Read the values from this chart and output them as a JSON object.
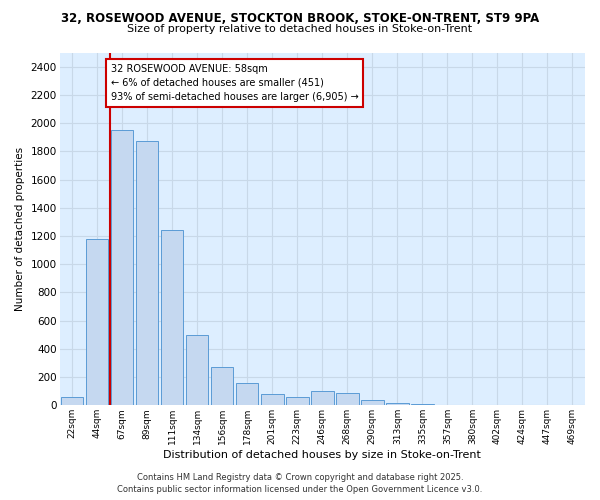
{
  "title_line1": "32, ROSEWOOD AVENUE, STOCKTON BROOK, STOKE-ON-TRENT, ST9 9PA",
  "title_line2": "Size of property relative to detached houses in Stoke-on-Trent",
  "xlabel": "Distribution of detached houses by size in Stoke-on-Trent",
  "ylabel": "Number of detached properties",
  "categories": [
    "22sqm",
    "44sqm",
    "67sqm",
    "89sqm",
    "111sqm",
    "134sqm",
    "156sqm",
    "178sqm",
    "201sqm",
    "223sqm",
    "246sqm",
    "268sqm",
    "290sqm",
    "313sqm",
    "335sqm",
    "357sqm",
    "380sqm",
    "402sqm",
    "424sqm",
    "447sqm",
    "469sqm"
  ],
  "bar_heights": [
    60,
    1180,
    1950,
    1870,
    1240,
    500,
    270,
    160,
    80,
    60,
    100,
    90,
    40,
    15,
    10,
    5,
    5,
    3,
    2,
    2,
    1
  ],
  "bar_color": "#c5d8f0",
  "bar_edge_color": "#5b9bd5",
  "annotation_text": "32 ROSEWOOD AVENUE: 58sqm\n← 6% of detached houses are smaller (451)\n93% of semi-detached houses are larger (6,905) →",
  "annotation_box_color": "#ffffff",
  "annotation_box_edge_color": "#cc0000",
  "red_line_color": "#cc0000",
  "grid_color": "#c8d8e8",
  "background_color": "#ddeeff",
  "fig_background": "#ffffff",
  "ylim": [
    0,
    2500
  ],
  "yticks": [
    0,
    200,
    400,
    600,
    800,
    1000,
    1200,
    1400,
    1600,
    1800,
    2000,
    2200,
    2400
  ],
  "footer_line1": "Contains HM Land Registry data © Crown copyright and database right 2025.",
  "footer_line2": "Contains public sector information licensed under the Open Government Licence v3.0."
}
